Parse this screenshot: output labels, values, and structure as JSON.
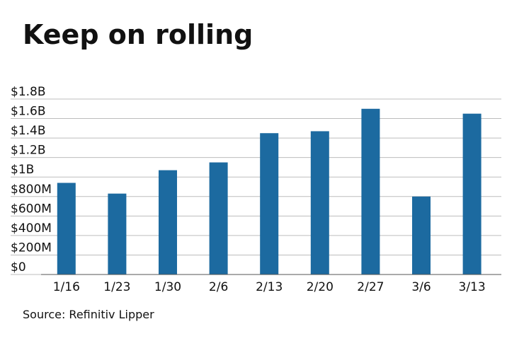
{
  "chart_data": {
    "type": "bar",
    "title": "Keep on rolling",
    "source": "Source: Refinitiv Lipper",
    "categories": [
      "1/16",
      "1/23",
      "1/30",
      "2/6",
      "2/13",
      "2/20",
      "2/27",
      "3/6",
      "3/13"
    ],
    "values": [
      940000000,
      830000000,
      1070000000,
      1150000000,
      1450000000,
      1470000000,
      1700000000,
      800000000,
      1650000000
    ],
    "color": "#1c6aa0",
    "ylim": [
      0,
      1800000000
    ],
    "yticks": [
      {
        "value": 0,
        "label": "$0"
      },
      {
        "value": 200000000,
        "label": "$200M"
      },
      {
        "value": 400000000,
        "label": "$400M"
      },
      {
        "value": 600000000,
        "label": "$600M"
      },
      {
        "value": 800000000,
        "label": "$800M"
      },
      {
        "value": 1000000000,
        "label": "$1B"
      },
      {
        "value": 1200000000,
        "label": "$1.2B"
      },
      {
        "value": 1400000000,
        "label": "$1.4B"
      },
      {
        "value": 1600000000,
        "label": "$1.6B"
      },
      {
        "value": 1800000000,
        "label": "$1.8B"
      }
    ],
    "grid": true
  }
}
